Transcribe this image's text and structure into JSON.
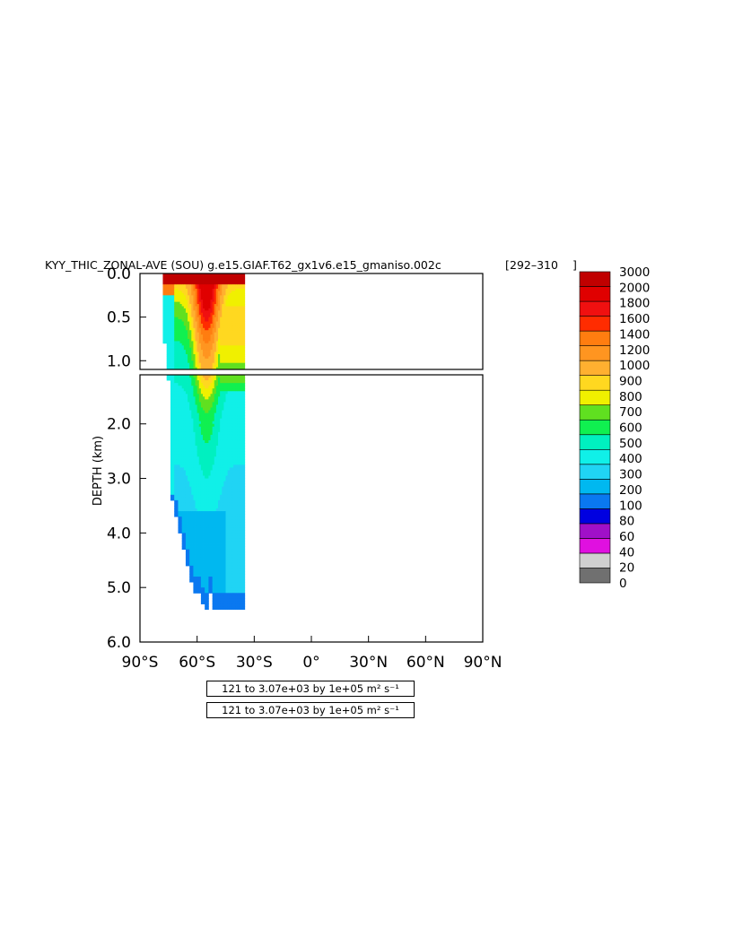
{
  "chart_data": {
    "type": "heatmap",
    "title": "KYY_THIC_ZONAL-AVE (SOU) g.e15.GIAF.T62_gx1v6.e15_gmaniso.002c",
    "title_years": "292–310",
    "ylabel": "DEPTH (km)",
    "xlabel": "",
    "x_tick_labels": [
      "90°S",
      "60°S",
      "30°S",
      "0°",
      "30°N",
      "60°N",
      "90°N"
    ],
    "x_ticks": [
      -90,
      -60,
      -30,
      0,
      30,
      60,
      90
    ],
    "xlim": [
      -90,
      90
    ],
    "top_panel": {
      "ylim": [
        0.0,
        1.1
      ],
      "y_ticks": [
        0.0,
        0.5,
        1.0
      ],
      "y_tick_labels": [
        "0.0",
        "0.5",
        "1.0"
      ]
    },
    "bottom_panel": {
      "ylim": [
        1.1,
        6.0
      ],
      "y_ticks": [
        2.0,
        3.0,
        4.0,
        5.0,
        6.0
      ],
      "y_tick_labels": [
        "2.0",
        "3.0",
        "4.0",
        "5.0",
        "6.0"
      ]
    },
    "contour_levels": [
      0,
      20,
      40,
      60,
      80,
      100,
      200,
      300,
      400,
      500,
      600,
      700,
      800,
      900,
      1000,
      1200,
      1400,
      1600,
      1800,
      2000,
      3000
    ],
    "colorbar_labels": [
      "3000",
      "2000",
      "1800",
      "1600",
      "1400",
      "1200",
      "1000",
      "900",
      "800",
      "700",
      "600",
      "500",
      "400",
      "300",
      "200",
      "100",
      "80",
      "60",
      "40",
      "20",
      "0"
    ],
    "colorbar_colors": [
      "#707070",
      "#d0d0d0",
      "#e010e0",
      "#a010c8",
      "#0000e0",
      "#0a78f0",
      "#00b8f0",
      "#20d4f4",
      "#10f0e8",
      "#00f0c0",
      "#10f050",
      "#60e020",
      "#f0f000",
      "#ffd820",
      "#ffb030",
      "#ff9520",
      "#ff7d10",
      "#ff2c00",
      "#f01010",
      "#e00000",
      "#c00000"
    ],
    "field": {
      "ocean_extent_lat": [
        -78,
        -35
      ],
      "max_depth_km": 5.4,
      "lat": [
        -78,
        -76,
        -74,
        -72,
        -70,
        -68,
        -66,
        -64,
        -62,
        -60,
        -58,
        -56,
        -54,
        -52,
        -50,
        -48,
        -46,
        -44,
        -42,
        -40,
        -38,
        -36,
        -35
      ],
      "bottom_depth_km": [
        0.8,
        1.2,
        3.4,
        3.7,
        4.0,
        4.3,
        4.6,
        4.9,
        5.1,
        5.1,
        5.3,
        5.4,
        5.1,
        5.4,
        5.4,
        5.4,
        5.4,
        5.4,
        5.4,
        5.4,
        5.4,
        5.4,
        5.4
      ],
      "surface_max_value": 3000,
      "deep_typical_value": 300,
      "mid_depth_peak_value": 1000,
      "mid_depth_peak_lat": -55
    },
    "contour_info": [
      "121 to 3.07e+03 by 1e+05 m² s⁻¹",
      "121 to 3.07e+03 by 1e+05 m² s⁻¹"
    ]
  }
}
